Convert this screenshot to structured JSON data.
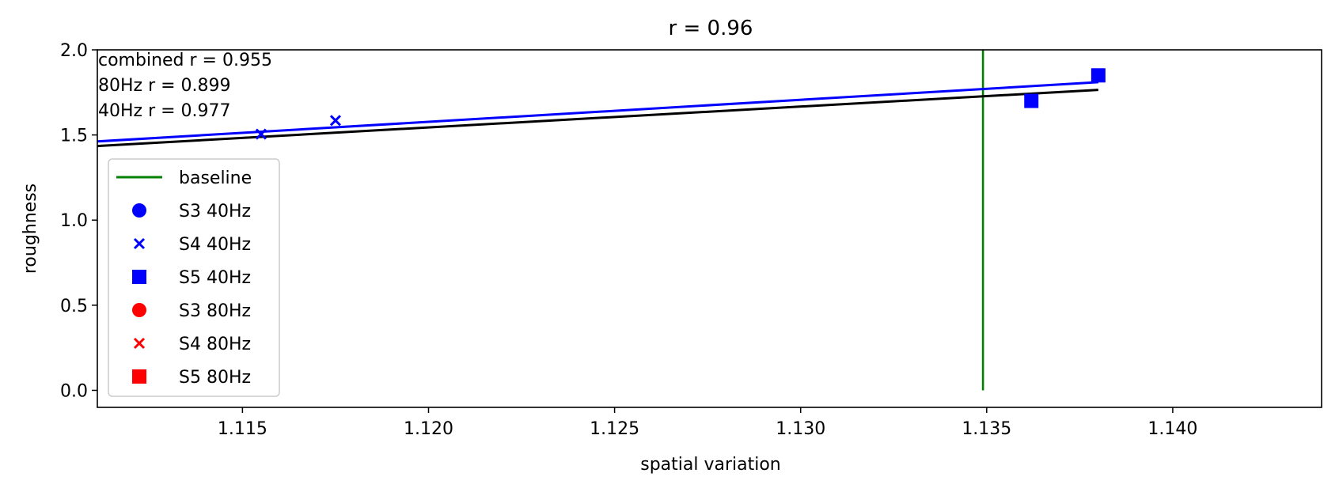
{
  "chart_data": {
    "type": "scatter",
    "title": "r = 0.96",
    "xlabel": "spatial variation",
    "ylabel": "roughness",
    "xlim": [
      1.1111,
      1.144
    ],
    "ylim": [
      -0.1,
      2.0
    ],
    "x_ticks": [
      "1.115",
      "1.120",
      "1.125",
      "1.130",
      "1.135",
      "1.140"
    ],
    "x_tick_values": [
      1.115,
      1.12,
      1.125,
      1.13,
      1.135,
      1.14
    ],
    "y_ticks": [
      "0.0",
      "0.5",
      "1.0",
      "1.5",
      "2.0"
    ],
    "y_tick_values": [
      0.0,
      0.5,
      1.0,
      1.5,
      2.0
    ],
    "annotations": [
      "combined r = 0.955",
      "80Hz r = 0.899",
      "40Hz r = 0.977"
    ],
    "legend_position": "left",
    "grid": false,
    "baseline": {
      "name": "baseline",
      "x": 1.1349,
      "y_range": [
        0.0,
        2.0
      ],
      "color": "#008000"
    },
    "fit_lines": [
      {
        "color": "#000000",
        "x": [
          1.1111,
          1.138
        ],
        "y": [
          1.435,
          1.765
        ]
      },
      {
        "color": "#0000ff",
        "x": [
          1.1111,
          1.138
        ],
        "y": [
          1.462,
          1.81
        ]
      }
    ],
    "series": [
      {
        "name": "S3 40Hz",
        "marker": "circle",
        "color": "#0000ff",
        "points": []
      },
      {
        "name": "S4 40Hz",
        "marker": "x",
        "color": "#0000ff",
        "points": [
          [
            1.1155,
            1.505
          ],
          [
            1.1175,
            1.585
          ]
        ]
      },
      {
        "name": "S5 40Hz",
        "marker": "square",
        "color": "#0000ff",
        "points": [
          [
            1.1362,
            1.7
          ],
          [
            1.138,
            1.85
          ]
        ]
      },
      {
        "name": "S3 80Hz",
        "marker": "circle",
        "color": "#ff0000",
        "points": []
      },
      {
        "name": "S4 80Hz",
        "marker": "x",
        "color": "#ff0000",
        "points": []
      },
      {
        "name": "S5 80Hz",
        "marker": "square",
        "color": "#ff0000",
        "points": []
      }
    ]
  }
}
